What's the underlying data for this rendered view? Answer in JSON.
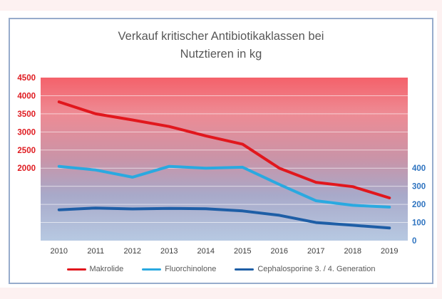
{
  "chart_data": {
    "type": "line",
    "title": "Verkauf kritischer Antibiotikaklassen bei Nutztieren in kg",
    "title_lines": [
      "Verkauf kritischer Antibiotikaklassen bei",
      "Nutztieren in kg"
    ],
    "categories": [
      "2010",
      "2011",
      "2012",
      "2013",
      "2014",
      "2015",
      "2016",
      "2017",
      "2018",
      "2019"
    ],
    "series": [
      {
        "name": "Makrolide",
        "axis": "left",
        "color": "#e1171d",
        "values": [
          3830,
          3500,
          3330,
          3150,
          2890,
          2660,
          2000,
          1610,
          1490,
          1180
        ]
      },
      {
        "name": "Fluorchinolone",
        "axis": "right",
        "color": "#2aa9e0",
        "values": [
          410,
          390,
          350,
          410,
          400,
          405,
          310,
          220,
          195,
          185
        ]
      },
      {
        "name": "Cephalosporine 3. / 4. Generation",
        "axis": "right",
        "color": "#1e5ea6",
        "values": [
          170,
          180,
          175,
          178,
          176,
          164,
          140,
          100,
          85,
          70
        ]
      }
    ],
    "left_axis": {
      "min": 0,
      "max": 4500,
      "grid_step": 500,
      "labeled_ticks": [
        4500,
        4000,
        3500,
        3000,
        2500,
        2000
      ],
      "label_color": "#df1b20"
    },
    "right_axis": {
      "min": 0,
      "max": 900,
      "grid_step": 100,
      "labeled_ticks": [
        400,
        300,
        200,
        100,
        0
      ],
      "label_color": "#2f74c0"
    },
    "x_label_color": "#3d3d3d",
    "grid": true,
    "grid_color": "rgba(255,255,255,0.6)",
    "legend_position": "bottom",
    "plot_gradient": [
      "#f4616a",
      "#ee8b94",
      "#c994a8",
      "#a8a9c9",
      "#b7c9e2"
    ]
  },
  "page": {
    "outer_background": "#fdf1f1",
    "card_border_color": "#97accc"
  }
}
